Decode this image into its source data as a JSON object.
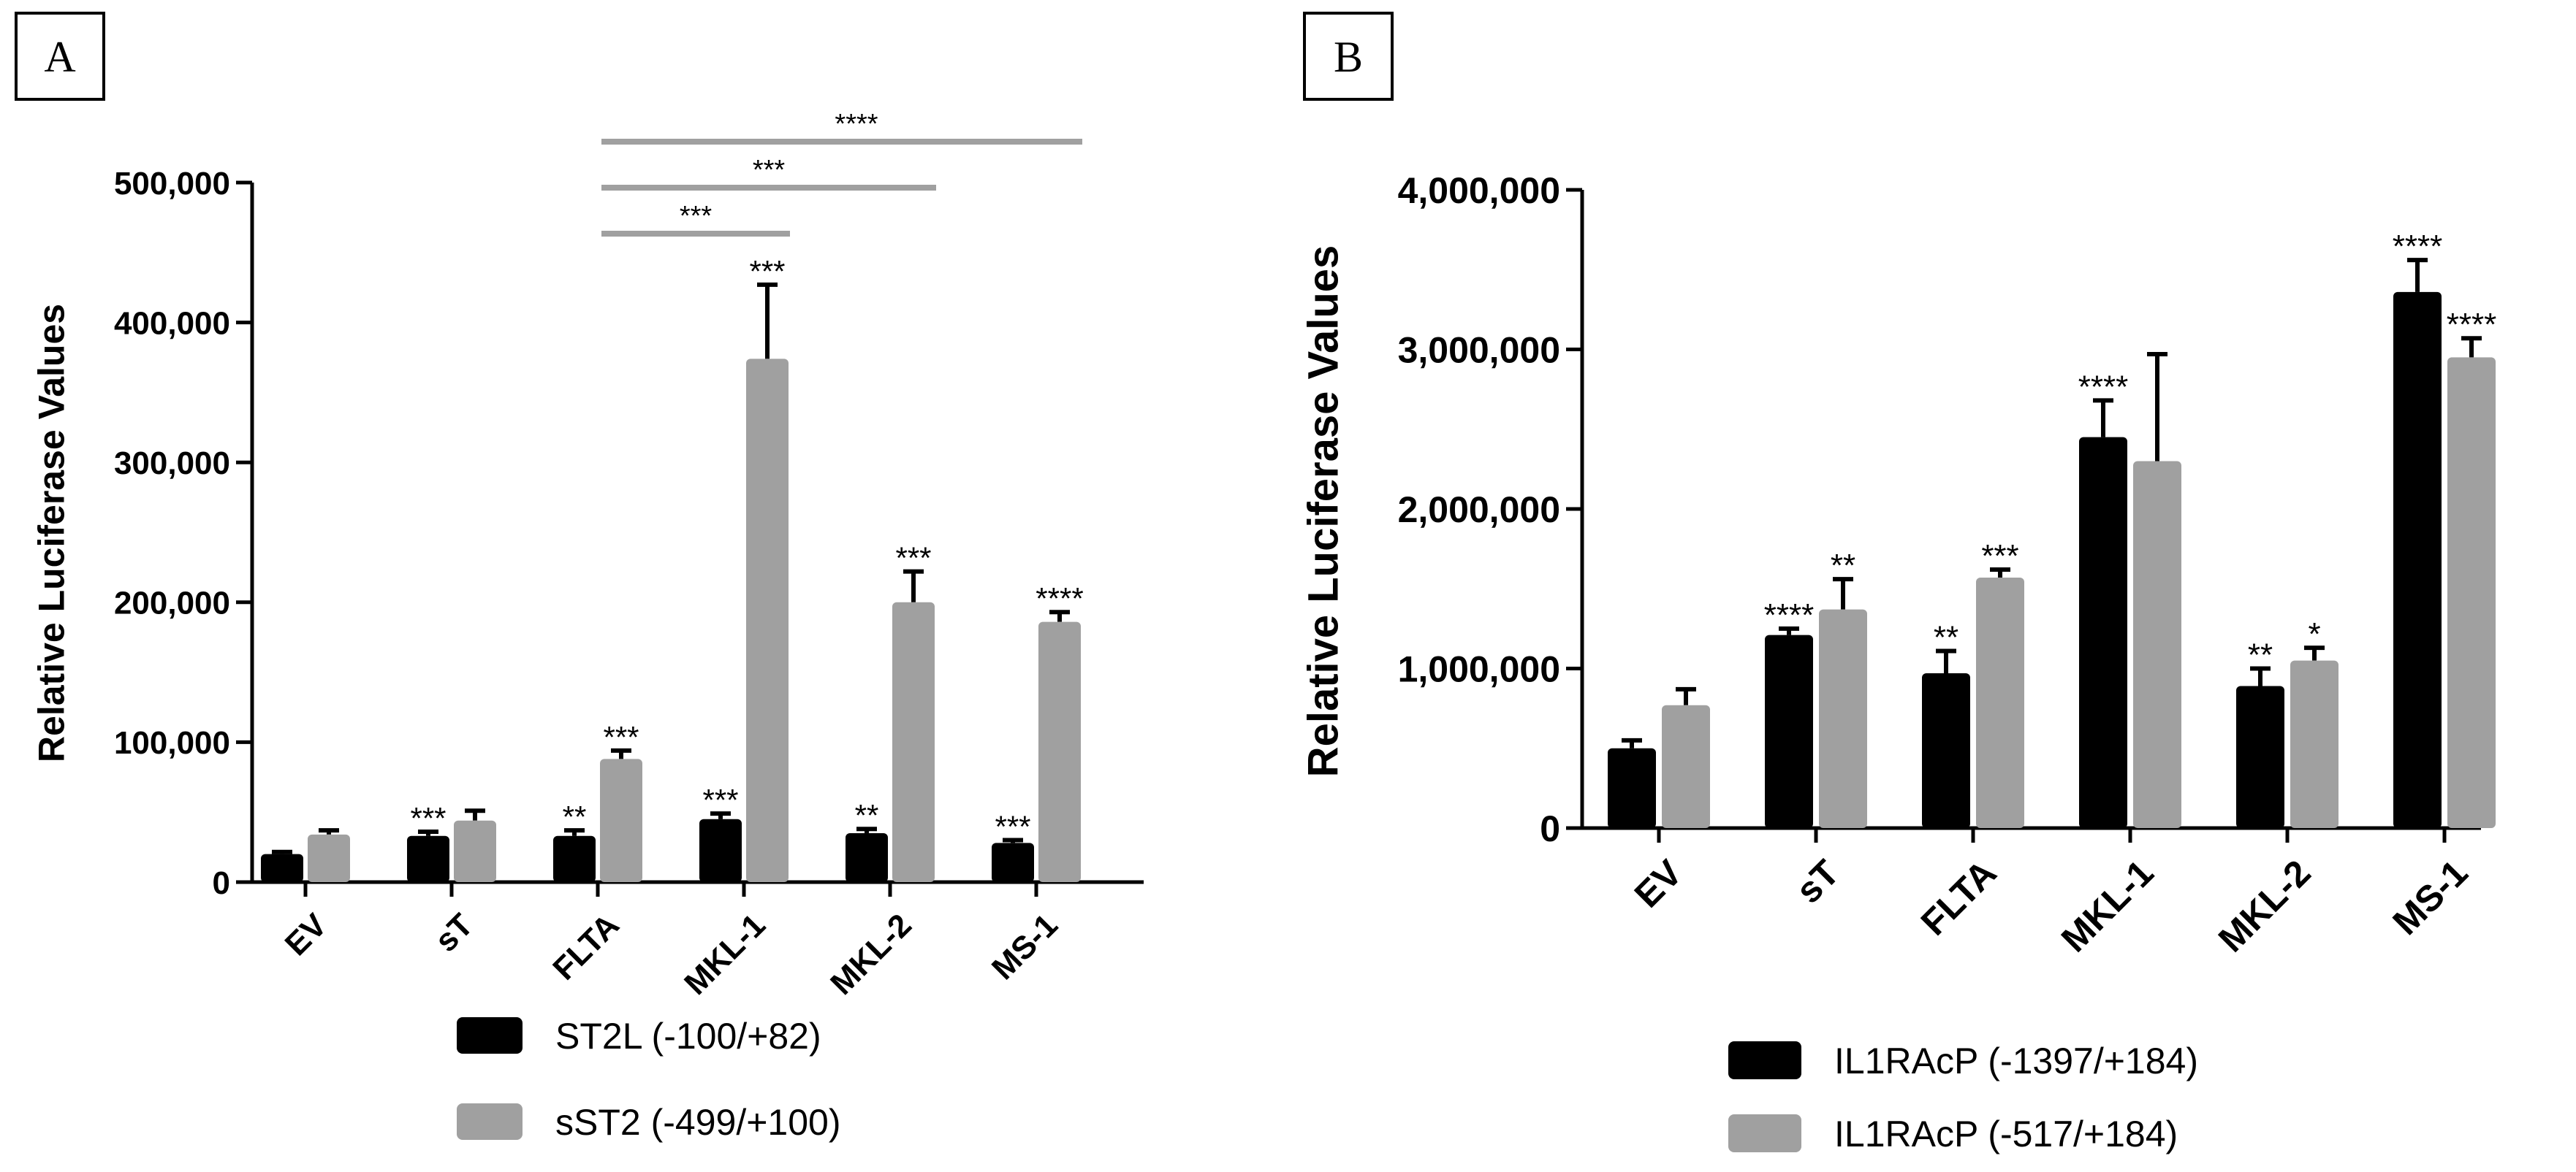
{
  "figure": {
    "panels": [
      {
        "id": "A",
        "label": "A"
      },
      {
        "id": "B",
        "label": "B"
      }
    ]
  },
  "chart_data": [
    {
      "type": "bar",
      "panel": "A",
      "title": "",
      "xlabel": "",
      "ylabel": "Relative Luciferase Values",
      "ylim": [
        0,
        500000
      ],
      "yticks": [
        0,
        100000,
        200000,
        300000,
        400000,
        500000
      ],
      "ytick_labels": [
        "0",
        "100,000",
        "200,000",
        "300,000",
        "400,000",
        "500,000"
      ],
      "categories": [
        "EV",
        "sT",
        "FLTA",
        "MKL-1",
        "MKL-2",
        "MS-1"
      ],
      "series": [
        {
          "name": "ST2L (-100/+82)",
          "color": "#000000",
          "values": [
            20000,
            33000,
            33000,
            45000,
            35000,
            28000
          ],
          "errors": [
            1500,
            3000,
            4000,
            4000,
            3000,
            2000
          ],
          "annotations": [
            "",
            "***",
            "**",
            "***",
            "**",
            "***"
          ]
        },
        {
          "name": "sST2 (-499/+100)",
          "color": "#a0a0a0",
          "values": [
            34000,
            44000,
            88000,
            374000,
            200000,
            186000
          ],
          "errors": [
            3000,
            7000,
            6000,
            53000,
            22000,
            7000
          ],
          "annotations": [
            "",
            "",
            "***",
            "***",
            "***",
            "****"
          ]
        }
      ],
      "comparisons": [
        {
          "from": "FLTA",
          "to": "MKL-1",
          "label": "***"
        },
        {
          "from": "FLTA",
          "to": "MKL-2",
          "label": "***"
        },
        {
          "from": "FLTA",
          "to": "MS-1",
          "label": "****"
        }
      ],
      "legend_position": "bottom"
    },
    {
      "type": "bar",
      "panel": "B",
      "title": "",
      "xlabel": "",
      "ylabel": "Relative Luciferase Values",
      "ylim": [
        0,
        4000000
      ],
      "yticks": [
        0,
        1000000,
        2000000,
        3000000,
        4000000
      ],
      "ytick_labels": [
        "0",
        "1,000,000",
        "2,000,000",
        "3,000,000",
        "4,000,000"
      ],
      "categories": [
        "EV",
        "sT",
        "FLTA",
        "MKL-1",
        "MKL-2",
        "MS-1"
      ],
      "series": [
        {
          "name": "IL1RAcP (-1397/+184)",
          "color": "#000000",
          "values": [
            500000,
            1210000,
            970000,
            2450000,
            890000,
            3360000
          ],
          "errors": [
            50000,
            40000,
            140000,
            230000,
            110000,
            200000
          ],
          "annotations": [
            "",
            "****",
            "**",
            "****",
            "**",
            "****"
          ]
        },
        {
          "name": "IL1RAcP (-517/+184)",
          "color": "#a0a0a0",
          "values": [
            770000,
            1370000,
            1570000,
            2300000,
            1050000,
            2950000
          ],
          "errors": [
            100000,
            190000,
            50000,
            670000,
            80000,
            120000
          ],
          "annotations": [
            "",
            "**",
            "***",
            "",
            "*",
            "****"
          ]
        }
      ],
      "comparisons": [],
      "legend_position": "bottom"
    }
  ]
}
